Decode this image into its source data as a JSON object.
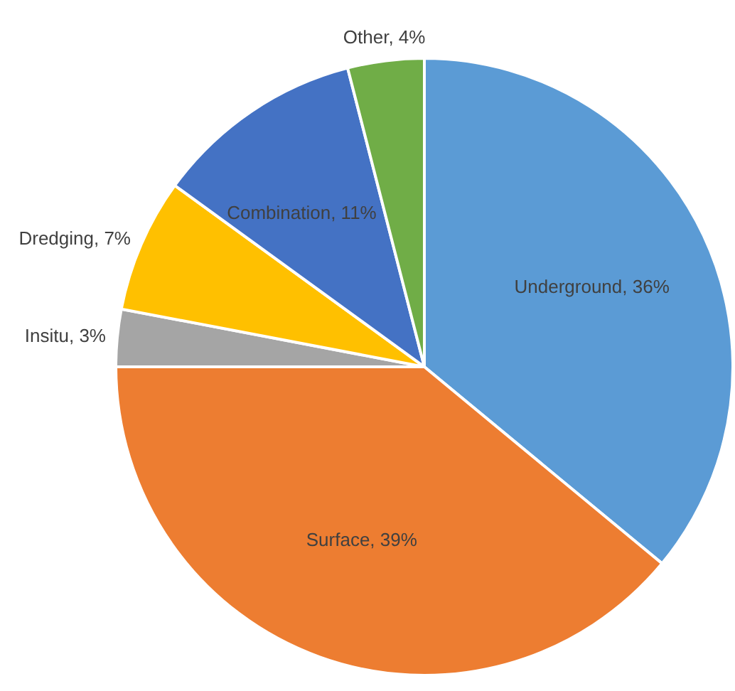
{
  "chart_data": {
    "type": "pie",
    "categories": [
      "Underground",
      "Surface",
      "Insitu",
      "Dredging",
      "Combination",
      "Other"
    ],
    "values": [
      36,
      39,
      3,
      7,
      11,
      4
    ],
    "value_labels": [
      "36%",
      "39%",
      "3%",
      "7%",
      "11%",
      "4%"
    ],
    "colors": [
      "#5b9bd5",
      "#ed7d31",
      "#a5a5a5",
      "#ffc000",
      "#4472c4",
      "#70ad47"
    ],
    "legend": false
  }
}
